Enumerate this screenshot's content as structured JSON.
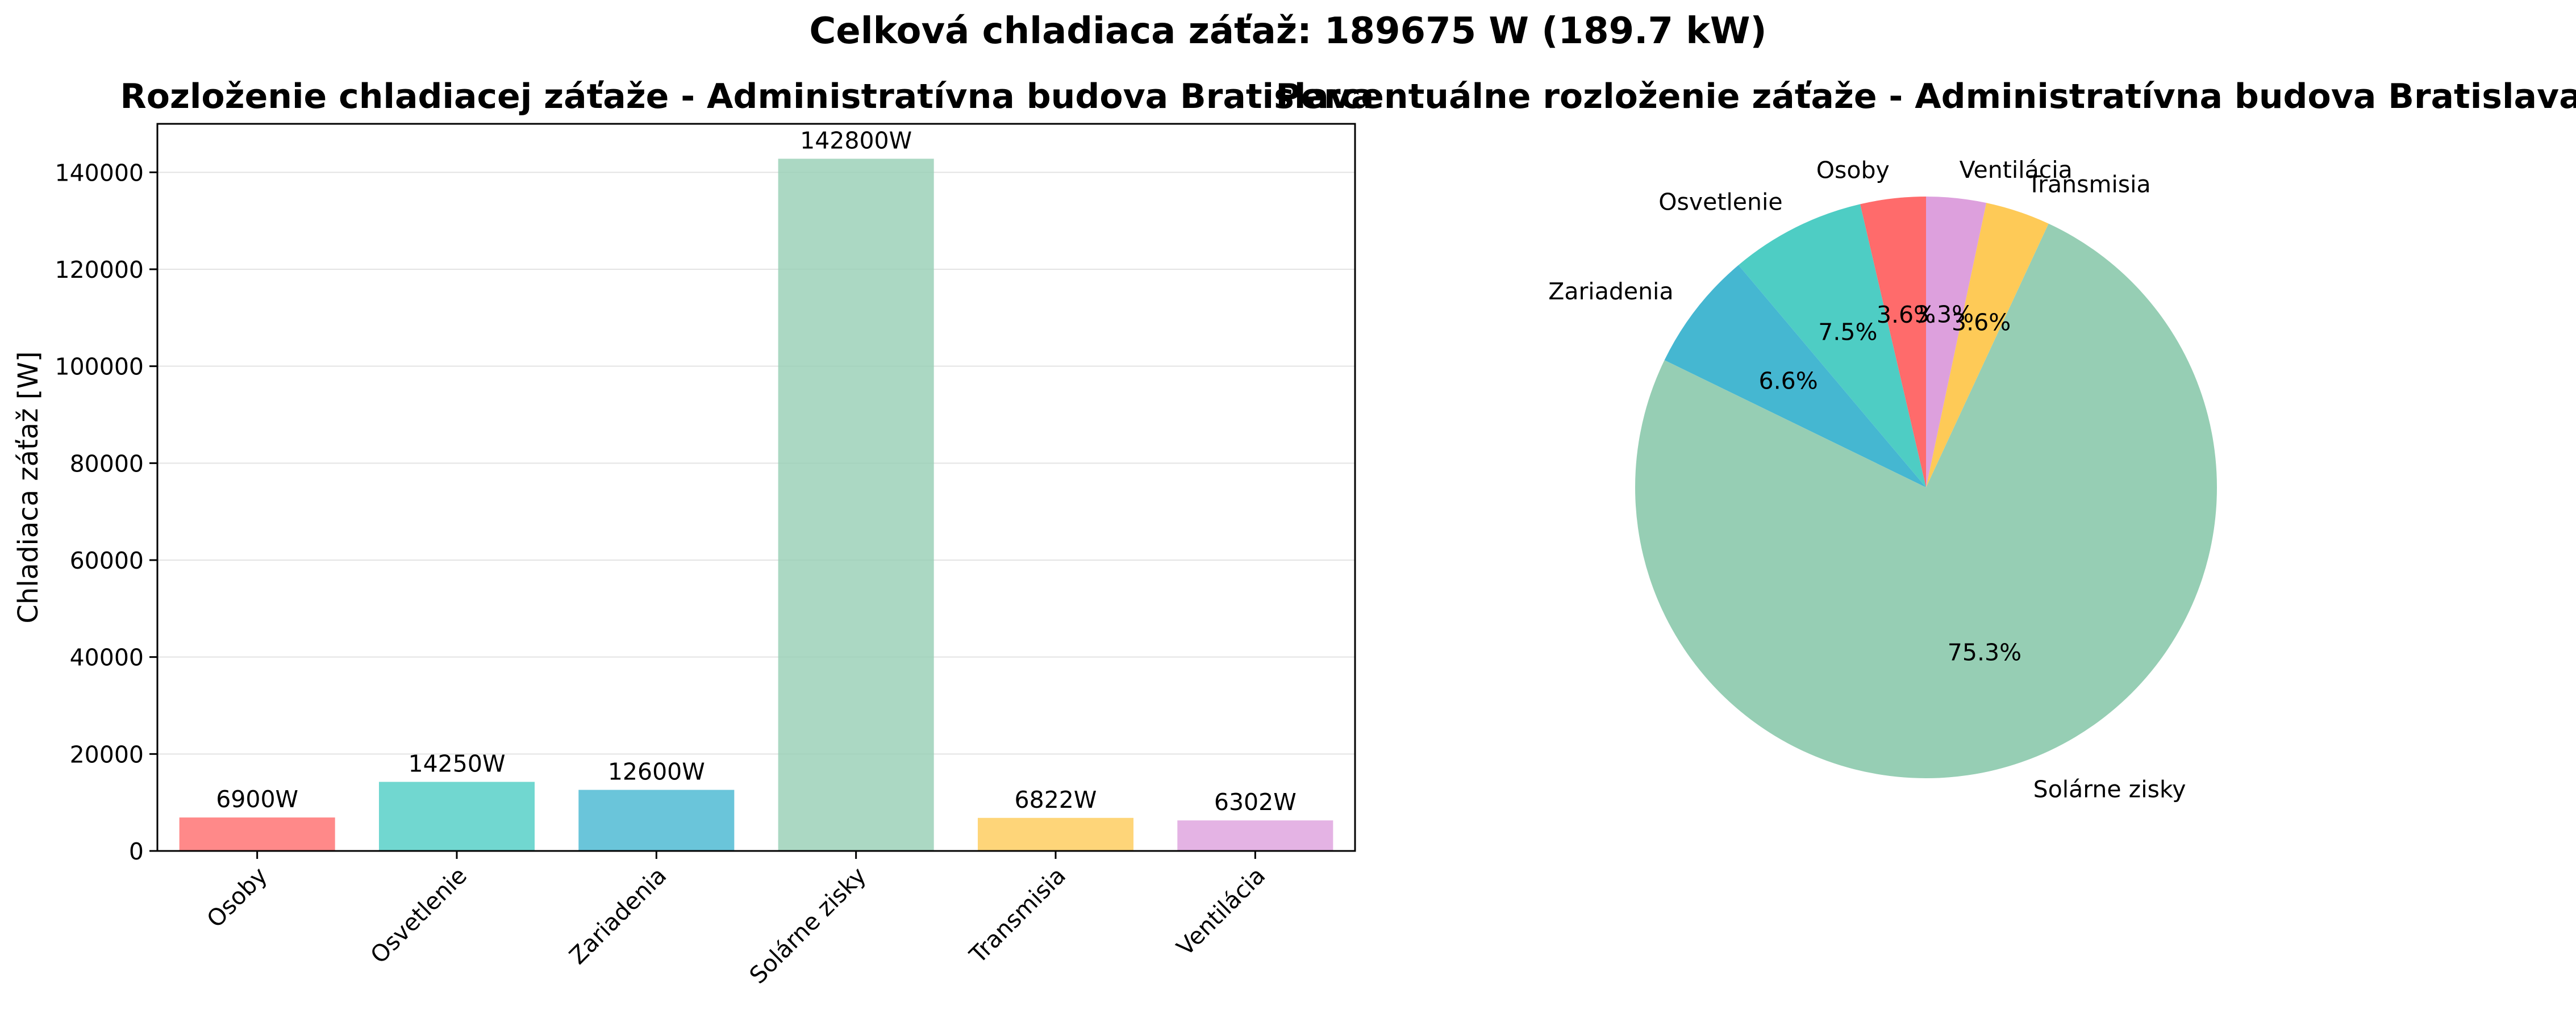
{
  "suptitle": "Celková chladiaca záťaž: 189675 W (189.7 kW)",
  "chart_data": [
    {
      "type": "bar",
      "title": "Rozloženie chladiacej záťaže - Administratívna budova Bratislava",
      "xlabel": "",
      "ylabel": "Chladiaca záťaž [W]",
      "ylim": [
        0,
        150000
      ],
      "yticks": [
        0,
        20000,
        40000,
        60000,
        80000,
        100000,
        120000,
        140000
      ],
      "grid": "y",
      "categories": [
        "Osoby",
        "Osvetlenie",
        "Zariadenia",
        "Solárne zisky",
        "Transmisia",
        "Ventilácia"
      ],
      "values": [
        6900,
        14250,
        12600,
        142800,
        6822,
        6302
      ],
      "value_labels": [
        "6900W",
        "14250W",
        "12600W",
        "142800W",
        "6822W",
        "6302W"
      ],
      "colors": [
        "#ff6b6b",
        "#4ecdc4",
        "#45b7d1",
        "#96ceb4",
        "#feca57",
        "#dda0dd"
      ]
    },
    {
      "type": "pie",
      "title": "Percentuálne rozloženie záťaže - Administratívna budova Bratislava",
      "labels": [
        "Osoby",
        "Osvetlenie",
        "Zariadenia",
        "Solárne zisky",
        "Transmisia",
        "Ventilácia"
      ],
      "values": [
        6900,
        14250,
        12600,
        142800,
        6822,
        6302
      ],
      "pct_labels": [
        "3.6%",
        "7.5%",
        "6.6%",
        "75.3%",
        "3.6%",
        "3.3%"
      ],
      "colors": [
        "#ff6b6b",
        "#4ecdc4",
        "#45b7d1",
        "#96ceb4",
        "#feca57",
        "#dda0dd"
      ],
      "start_angle": 90,
      "direction": "counterclockwise"
    }
  ]
}
